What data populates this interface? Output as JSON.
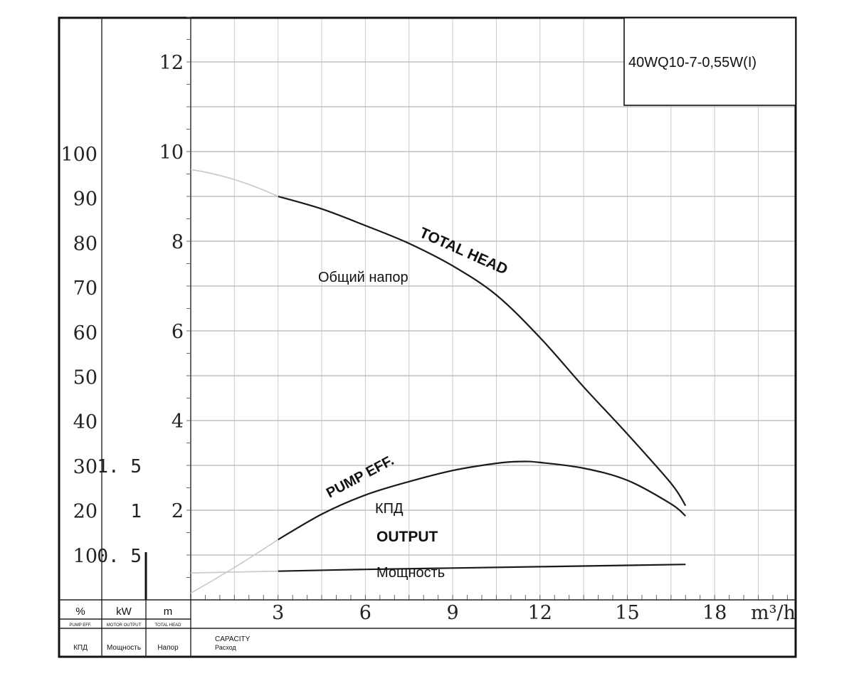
{
  "chart_data": {
    "type": "line",
    "title": "40WQ10-7-0,55W(I)",
    "x_axis": {
      "ticks": [
        "3",
        "6",
        "9",
        "12",
        "15",
        "18"
      ],
      "unit": "m³/h",
      "label_en": "CAPACITY",
      "label_ru": "Расход",
      "range": [
        0,
        21
      ]
    },
    "y_axes": {
      "efficiency": {
        "unit": "%",
        "label_en": "PUMP EFF.",
        "label_ru": "КПД",
        "ticks": [
          "10",
          "20",
          "30",
          "40",
          "50",
          "60",
          "70",
          "80",
          "90",
          "100"
        ]
      },
      "power": {
        "unit": "kW",
        "label_en": "MOTOR OUTPUT",
        "label_ru": "Мощность",
        "ticks": [
          "0. 5",
          "1",
          "1. 5"
        ]
      },
      "head": {
        "unit": "m",
        "label_en": "TOTAL HEAD",
        "label_ru": "Напор",
        "ticks": [
          "2",
          "4",
          "6",
          "8",
          "10",
          "12"
        ],
        "range": [
          0,
          13
        ]
      }
    },
    "series": [
      {
        "name": "TOTAL HEAD",
        "name_ru": "Общий напор",
        "axis": "head",
        "x": [
          3,
          4.5,
          6,
          7.5,
          9,
          10.5,
          12,
          13.5,
          15,
          16.5,
          17
        ],
        "y": [
          9.0,
          8.72,
          8.35,
          7.95,
          7.45,
          6.8,
          5.85,
          4.75,
          3.7,
          2.6,
          2.1
        ]
      },
      {
        "name": "PUMP EFF.",
        "name_ru": "КПД",
        "axis": "efficiency",
        "x": [
          3,
          4.5,
          6,
          7.5,
          9,
          10.5,
          11.3,
          12,
          13.5,
          15,
          16.5,
          17
        ],
        "y": [
          13.5,
          19.2,
          23.5,
          26.5,
          29.0,
          30.6,
          31.0,
          30.8,
          29.5,
          26.8,
          21.5,
          18.8
        ]
      },
      {
        "name": "OUTPUT",
        "name_ru": "Мощность",
        "axis": "power",
        "x": [
          3,
          6,
          9,
          12,
          15,
          17
        ],
        "y": [
          0.32,
          0.34,
          0.355,
          0.37,
          0.385,
          0.395
        ]
      }
    ],
    "grid": true
  },
  "labels": {
    "head_en": "TOTAL HEAD",
    "head_ru": "Общий напор",
    "eff_en": "PUMP EFF.",
    "eff_ru": "КПД",
    "out_en": "OUTPUT",
    "out_ru": "Мощность"
  },
  "footer": {
    "col_eff": {
      "unit": "%",
      "en": "PUMP EFF.",
      "ru": "КПД"
    },
    "col_power": {
      "unit": "kW",
      "en": "MOTOR OUTPUT",
      "ru": "Мощность"
    },
    "col_head": {
      "unit": "m",
      "en": "TOTAL HEAD",
      "ru": "Напор"
    },
    "capacity_en": "CAPACITY",
    "capacity_ru": "Расход"
  }
}
